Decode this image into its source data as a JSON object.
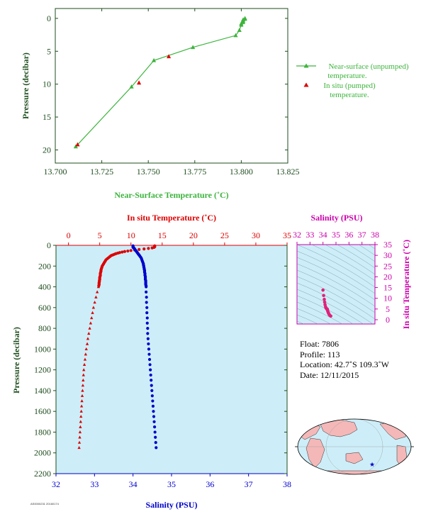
{
  "colors": {
    "green": "#3cb43c",
    "dark_green": "#1e4d1e",
    "red": "#dd0000",
    "blue": "#0000cc",
    "magenta": "#cc00aa",
    "panel_bg": "#cdeef8",
    "grid": "#000000"
  },
  "chart_data": [
    {
      "id": "near_surface",
      "type": "line",
      "xlabel": "Near-Surface Temperature (˚C)",
      "ylabel": "Pressure (decibar)",
      "xlim": [
        13.7,
        13.825
      ],
      "ylim": [
        22,
        -1.5
      ],
      "y_inverted": true,
      "xticks": [
        "13.700",
        "13.725",
        "13.750",
        "13.775",
        "13.800",
        "13.825"
      ],
      "yticks": [
        "0",
        "5",
        "10",
        "15",
        "20"
      ],
      "legend_position": "right",
      "series": [
        {
          "name": "Near-surface (unpumped) temperature.",
          "marker": "triangle",
          "style": "line",
          "x": [
            13.711,
            13.741,
            13.753,
            13.774,
            13.797,
            13.799,
            13.8,
            13.8,
            13.801,
            13.801,
            13.801,
            13.802,
            13.802
          ],
          "y": [
            19.5,
            10.4,
            6.4,
            4.4,
            2.6,
            1.8,
            1.0,
            0.8,
            0.6,
            0.4,
            0.2,
            0.1,
            0.0
          ]
        },
        {
          "name": "In situ (pumped) temperature.",
          "marker": "triangle",
          "style": "points",
          "x": [
            13.712,
            13.745,
            13.761
          ],
          "y": [
            19.2,
            9.8,
            5.8
          ]
        }
      ]
    },
    {
      "id": "profile",
      "type": "scatter",
      "top_xlabel": "In situ Temperature (˚C)",
      "bottom_xlabel": "Salinity (PSU)",
      "ylabel": "Pressure (decibar)",
      "temp_lim": [
        -2,
        35
      ],
      "sal_lim": [
        32,
        38
      ],
      "ylim": [
        2200,
        0
      ],
      "y_inverted": true,
      "temp_ticks": [
        "0",
        "5",
        "10",
        "15",
        "20",
        "25",
        "30",
        "35"
      ],
      "sal_ticks": [
        "32",
        "33",
        "34",
        "35",
        "36",
        "37",
        "38"
      ],
      "y_ticks": [
        "0",
        "200",
        "400",
        "600",
        "800",
        "1000",
        "1200",
        "1400",
        "1600",
        "1800",
        "2000",
        "2200"
      ],
      "temperature": {
        "name": "In situ Temperature",
        "pressure": [
          5,
          10,
          15,
          20,
          25,
          30,
          35,
          40,
          45,
          50,
          55,
          60,
          65,
          70,
          75,
          80,
          85,
          90,
          95,
          100,
          110,
          120,
          130,
          140,
          150,
          160,
          170,
          180,
          190,
          200,
          210,
          220,
          230,
          240,
          250,
          260,
          270,
          280,
          290,
          300,
          310,
          320,
          330,
          340,
          350,
          360,
          370,
          380,
          390,
          400,
          450,
          500,
          550,
          600,
          650,
          700,
          750,
          800,
          850,
          900,
          950,
          1000,
          1050,
          1100,
          1150,
          1200,
          1250,
          1300,
          1350,
          1400,
          1450,
          1500,
          1550,
          1600,
          1650,
          1700,
          1750,
          1800,
          1850,
          1900,
          1950
        ],
        "values": [
          13.8,
          13.8,
          13.8,
          13.7,
          13.4,
          12.8,
          12.1,
          11.3,
          10.6,
          10.0,
          9.5,
          9.0,
          8.6,
          8.2,
          7.9,
          7.6,
          7.4,
          7.2,
          7.0,
          6.8,
          6.6,
          6.4,
          6.2,
          6.0,
          5.9,
          5.8,
          5.7,
          5.6,
          5.5,
          5.4,
          5.35,
          5.3,
          5.25,
          5.2,
          5.2,
          5.15,
          5.1,
          5.1,
          5.1,
          5.05,
          5.0,
          5.0,
          5.0,
          4.95,
          4.95,
          4.9,
          4.9,
          4.9,
          4.85,
          4.8,
          4.6,
          4.4,
          4.2,
          4.0,
          3.85,
          3.7,
          3.55,
          3.4,
          3.25,
          3.1,
          3.0,
          2.85,
          2.75,
          2.65,
          2.55,
          2.45,
          2.4,
          2.35,
          2.3,
          2.25,
          2.2,
          2.15,
          2.1,
          2.05,
          2.0,
          1.95,
          1.9,
          1.85,
          1.8,
          1.75,
          1.7
        ]
      },
      "salinity": {
        "name": "Salinity",
        "pressure": [
          5,
          10,
          15,
          20,
          25,
          30,
          35,
          40,
          45,
          50,
          55,
          60,
          65,
          70,
          75,
          80,
          85,
          90,
          95,
          100,
          110,
          120,
          130,
          140,
          150,
          160,
          170,
          180,
          190,
          200,
          210,
          220,
          230,
          240,
          250,
          260,
          270,
          280,
          290,
          300,
          310,
          320,
          330,
          340,
          350,
          360,
          370,
          380,
          390,
          400,
          450,
          500,
          550,
          600,
          650,
          700,
          750,
          800,
          850,
          900,
          950,
          1000,
          1050,
          1100,
          1150,
          1200,
          1250,
          1300,
          1350,
          1400,
          1450,
          1500,
          1550,
          1600,
          1650,
          1700,
          1750,
          1800,
          1850,
          1900,
          1950
        ],
        "values": [
          34.0,
          34.0,
          34.0,
          34.0,
          34.02,
          34.03,
          34.04,
          34.05,
          34.06,
          34.07,
          34.08,
          34.09,
          34.1,
          34.11,
          34.12,
          34.13,
          34.14,
          34.15,
          34.16,
          34.17,
          34.19,
          34.21,
          34.22,
          34.23,
          34.24,
          34.25,
          34.26,
          34.27,
          34.27,
          34.28,
          34.28,
          34.29,
          34.29,
          34.3,
          34.3,
          34.3,
          34.31,
          34.31,
          34.31,
          34.32,
          34.32,
          34.32,
          34.32,
          34.33,
          34.33,
          34.33,
          34.33,
          34.33,
          34.34,
          34.34,
          34.34,
          34.35,
          34.35,
          34.36,
          34.36,
          34.37,
          34.37,
          34.38,
          34.38,
          34.39,
          34.4,
          34.41,
          34.42,
          34.43,
          34.44,
          34.45,
          34.46,
          34.47,
          34.48,
          34.49,
          34.5,
          34.51,
          34.52,
          34.53,
          34.54,
          34.55,
          34.56,
          34.57,
          34.58,
          34.59,
          34.6
        ]
      }
    },
    {
      "id": "ts_diagram",
      "type": "scatter",
      "top_xlabel": "Salinity (PSU)",
      "right_ylabel": "In situ Temperature (˚C)",
      "xlim": [
        32,
        38
      ],
      "ylim": [
        -2,
        35
      ],
      "xticks": [
        "32",
        "33",
        "34",
        "35",
        "36",
        "37",
        "38"
      ],
      "yticks": [
        "0",
        "5",
        "10",
        "15",
        "20",
        "25",
        "30",
        "35"
      ],
      "salinity": [
        34.0,
        34.05,
        34.1,
        34.13,
        34.16,
        34.2,
        34.22,
        34.25,
        34.28,
        34.3,
        34.32,
        34.33,
        34.34,
        34.35,
        34.37,
        34.4,
        34.43,
        34.47,
        34.5,
        34.55,
        34.6
      ],
      "temperature": [
        13.8,
        11.3,
        9.5,
        8.2,
        7.0,
        6.0,
        5.6,
        5.3,
        5.1,
        5.0,
        4.95,
        4.9,
        4.8,
        4.4,
        4.0,
        3.4,
        3.0,
        2.5,
        2.2,
        1.9,
        1.7
      ]
    }
  ],
  "info": {
    "float": "Float:  7806",
    "profile": "Profile:  113",
    "location": "Location:  42.7˚S  109.3˚W",
    "date": "Date:  12/11/2015"
  },
  "map": {
    "float_marker": "star",
    "map_colors": {
      "ocean": "#cdeef8",
      "land": "#f4b8b8",
      "coast": "#000000",
      "marker": "#0000cc"
    }
  },
  "footer_code": "AS0000231 20160174"
}
